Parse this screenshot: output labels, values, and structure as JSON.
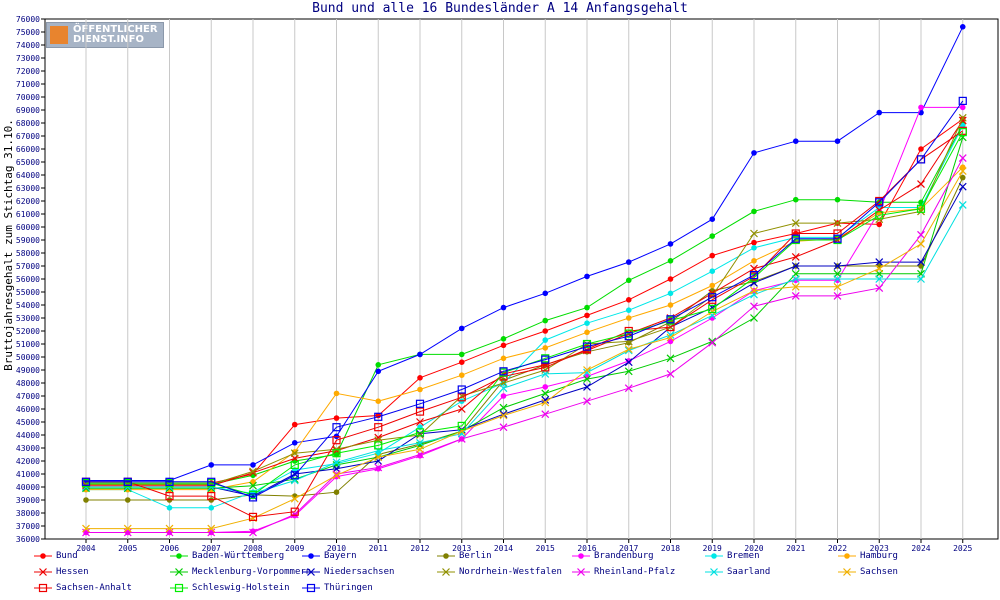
{
  "colors": {
    "bund": "#ff0000",
    "bw": "#00dd00",
    "by": "#0000ff",
    "be": "#808000",
    "bb": "#ff00ff",
    "hb": "#00e8e8",
    "hh": "#ffaa00",
    "he": "#ee0000",
    "mv": "#00cc00",
    "ni": "#0000c0",
    "nw": "#909000",
    "rp": "#ee00ee",
    "sl": "#00e0e0",
    "sn": "#f0b000",
    "st": "#ee0000",
    "sh": "#00ee00",
    "th": "#0000ee"
  },
  "logo": {
    "line1": "ÖFFENTLICHER",
    "line2": "DIENST.INFO"
  },
  "chart_data": {
    "type": "line",
    "title": "Bund und alle 16 Bundesländer A 14 Anfangsgehalt",
    "xlabel": "",
    "ylabel": "Bruttojahresgehalt zum Stichtag 31.10.",
    "x": [
      "2004",
      "2005",
      "2006",
      "2007",
      "2008",
      "2009",
      "2010",
      "2011",
      "2012",
      "2013",
      "2014",
      "2015",
      "2016",
      "2017",
      "2018",
      "2019",
      "2020",
      "2021",
      "2022",
      "2023",
      "2024",
      "2025"
    ],
    "ylim": [
      36000,
      76000
    ],
    "yticks": [
      "36000",
      "37000",
      "38000",
      "39000",
      "40000",
      "41000",
      "42000",
      "43000",
      "44000",
      "45000",
      "46000",
      "47000",
      "48000",
      "49000",
      "50000",
      "51000",
      "52000",
      "53000",
      "54000",
      "55000",
      "56000",
      "57000",
      "58000",
      "59000",
      "60000",
      "61000",
      "62000",
      "63000",
      "64000",
      "65000",
      "66000",
      "67000",
      "68000",
      "69000",
      "70000",
      "71000",
      "72000",
      "73000",
      "74000",
      "75000",
      "76000"
    ],
    "grid": "vertical",
    "legend_position": "bottom",
    "series": [
      {
        "name": "Bund",
        "key": "bund",
        "marker": "dot",
        "values": [
          40300,
          40300,
          40300,
          40300,
          41000,
          44800,
          45300,
          45500,
          48400,
          49600,
          50900,
          52000,
          53200,
          54400,
          56000,
          57800,
          58800,
          59500,
          60300,
          60200,
          66000,
          68300
        ]
      },
      {
        "name": "Baden-Württemberg",
        "key": "bw",
        "marker": "dot",
        "values": [
          40200,
          40200,
          40200,
          40200,
          40900,
          42000,
          42500,
          49400,
          50200,
          50200,
          51400,
          52800,
          53800,
          55900,
          57400,
          59300,
          61200,
          62100,
          62100,
          61900,
          61900,
          67900
        ]
      },
      {
        "name": "Bayern",
        "key": "by",
        "marker": "dot",
        "values": [
          40500,
          40500,
          40500,
          41700,
          41700,
          43400,
          43900,
          48900,
          50200,
          52200,
          53800,
          54900,
          56200,
          57300,
          58700,
          60600,
          65700,
          66600,
          66600,
          68800,
          68800,
          75400
        ]
      },
      {
        "name": "Berlin",
        "key": "be",
        "marker": "dot",
        "values": [
          39000,
          39000,
          39000,
          39000,
          39400,
          39300,
          39600,
          42500,
          43300,
          44300,
          48200,
          49400,
          50400,
          51100,
          52700,
          55100,
          55800,
          57000,
          57000,
          57000,
          57000,
          63800
        ]
      },
      {
        "name": "Brandenburg",
        "key": "bb",
        "marker": "dot",
        "values": [
          36500,
          36500,
          36500,
          36500,
          36600,
          37800,
          40800,
          41400,
          42400,
          43700,
          47000,
          47700,
          48500,
          49700,
          51200,
          53000,
          55100,
          55900,
          55900,
          61200,
          69200,
          69200
        ]
      },
      {
        "name": "Bremen",
        "key": "hb",
        "marker": "dot",
        "values": [
          39800,
          39800,
          38400,
          38400,
          39600,
          41300,
          41800,
          42600,
          44600,
          46600,
          48000,
          51300,
          52600,
          53600,
          54900,
          56600,
          58400,
          59200,
          59200,
          61500,
          61500,
          67800
        ]
      },
      {
        "name": "Hamburg",
        "key": "hh",
        "marker": "dot",
        "values": [
          39800,
          39800,
          39800,
          39800,
          40400,
          42700,
          47200,
          46600,
          47500,
          48600,
          49900,
          50700,
          51900,
          53000,
          54000,
          55500,
          57400,
          58900,
          59100,
          61100,
          61400,
          64600
        ]
      },
      {
        "name": "Hessen",
        "key": "he",
        "marker": "x",
        "values": [
          40100,
          40100,
          40100,
          40100,
          41100,
          42200,
          42800,
          43800,
          45000,
          46000,
          48700,
          49400,
          50500,
          51800,
          53000,
          54900,
          56800,
          57700,
          59000,
          61300,
          63300,
          68200
        ]
      },
      {
        "name": "Mecklenburg-Vorpommern",
        "key": "mv",
        "marker": "x",
        "values": [
          39900,
          39900,
          39900,
          39900,
          40100,
          40600,
          41700,
          42300,
          43200,
          44300,
          46100,
          47200,
          48300,
          48900,
          49900,
          51200,
          53000,
          56400,
          56400,
          56400,
          56400,
          66900
        ]
      },
      {
        "name": "Niedersachsen",
        "key": "ni",
        "marker": "x",
        "values": [
          40000,
          40000,
          40000,
          40000,
          39300,
          41000,
          41400,
          42000,
          44100,
          44400,
          45600,
          46700,
          47700,
          49600,
          52300,
          53800,
          55700,
          57000,
          57000,
          57300,
          57300,
          63100
        ]
      },
      {
        "name": "Nordrhein-Westfalen",
        "key": "nw",
        "marker": "x",
        "values": [
          40200,
          40200,
          40200,
          40200,
          41200,
          42600,
          42900,
          43600,
          44000,
          47000,
          48000,
          49000,
          51000,
          51200,
          52300,
          54700,
          59500,
          60300,
          60300,
          60600,
          61200,
          68400
        ]
      },
      {
        "name": "Rheinland-Pfalz",
        "key": "rp",
        "marker": "x",
        "values": [
          36500,
          36500,
          36500,
          36500,
          36500,
          37900,
          41000,
          41500,
          42500,
          43700,
          44600,
          45600,
          46600,
          47600,
          48700,
          51100,
          53900,
          54700,
          54700,
          55300,
          59400,
          65300
        ]
      },
      {
        "name": "Saarland",
        "key": "sl",
        "marker": "x",
        "values": [
          40000,
          40000,
          40000,
          40000,
          39500,
          40500,
          41900,
          42800,
          43400,
          44100,
          47600,
          48700,
          48800,
          50500,
          51700,
          53200,
          54800,
          56000,
          56000,
          56000,
          56000,
          61700
        ]
      },
      {
        "name": "Sachsen",
        "key": "sn",
        "marker": "x",
        "values": [
          36800,
          36800,
          36800,
          36800,
          37600,
          39100,
          40900,
          42300,
          42900,
          44300,
          45500,
          46500,
          49000,
          50600,
          51500,
          53500,
          55100,
          55400,
          55400,
          56800,
          58700,
          64300
        ]
      },
      {
        "name": "Sachsen-Anhalt",
        "key": "st",
        "marker": "sq",
        "values": [
          40400,
          40400,
          39300,
          39300,
          37700,
          38100,
          43600,
          44600,
          45800,
          46900,
          48500,
          49200,
          50600,
          52000,
          52300,
          54400,
          56200,
          59500,
          59500,
          62000,
          65200,
          67400
        ]
      },
      {
        "name": "Schleswig-Holstein",
        "key": "sh",
        "marker": "sq",
        "values": [
          40300,
          40300,
          40300,
          40300,
          39400,
          41700,
          42600,
          43200,
          44200,
          44700,
          48800,
          49900,
          51000,
          51800,
          52800,
          53700,
          56100,
          59000,
          59000,
          60900,
          61400,
          67300
        ]
      },
      {
        "name": "Thüringen",
        "key": "th",
        "marker": "sq",
        "values": [
          40400,
          40400,
          40400,
          40400,
          39200,
          40900,
          44600,
          45400,
          46400,
          47500,
          48900,
          49800,
          50800,
          51600,
          52900,
          54600,
          56300,
          59100,
          59100,
          61900,
          65200,
          69700
        ]
      }
    ]
  }
}
